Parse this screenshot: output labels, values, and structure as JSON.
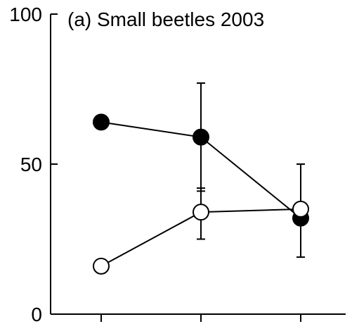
{
  "chart_data": {
    "type": "line",
    "title": "(a) Small beetles 2003",
    "xlabel": "",
    "ylabel": "",
    "ylim": [
      0,
      100
    ],
    "yticks": [
      "0",
      "50",
      "100"
    ],
    "x": [
      1,
      2,
      3
    ],
    "xtick_labels": [
      "",
      "",
      ""
    ],
    "grid": false,
    "series": [
      {
        "marker": "filled-circle",
        "values": [
          64,
          59,
          32
        ],
        "error_upper": [
          null,
          77,
          50
        ],
        "error_lower": [
          null,
          41,
          null
        ]
      },
      {
        "marker": "open-circle",
        "values": [
          16,
          34,
          35
        ],
        "error_upper": [
          null,
          42,
          null
        ],
        "error_lower": [
          null,
          25,
          19
        ]
      }
    ],
    "colors": {
      "line": "#000000",
      "filled": "#000000",
      "open": "#ffffff"
    }
  }
}
